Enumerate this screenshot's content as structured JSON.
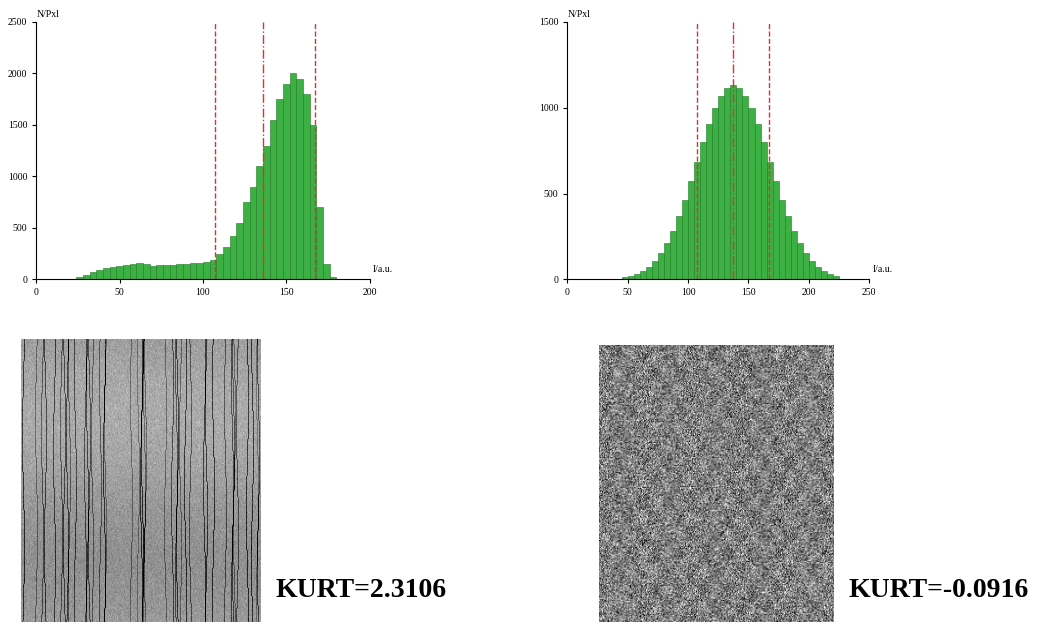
{
  "chart_data": [
    {
      "type": "histogram",
      "y_label": "N/Pxl",
      "x_label": "I/a.u.",
      "bins": [
        20,
        24,
        28,
        32,
        36,
        40,
        44,
        48,
        52,
        56,
        60,
        64,
        68,
        72,
        76,
        80,
        84,
        88,
        92,
        96,
        100,
        104,
        108,
        112,
        116,
        120,
        124,
        128,
        132,
        136,
        140,
        144,
        148,
        152,
        156,
        160,
        164,
        168,
        172,
        176,
        180
      ],
      "counts": [
        5,
        20,
        40,
        70,
        90,
        110,
        125,
        135,
        140,
        150,
        160,
        150,
        135,
        140,
        145,
        145,
        150,
        150,
        155,
        160,
        170,
        190,
        250,
        320,
        420,
        550,
        750,
        900,
        1100,
        1300,
        1550,
        1750,
        1900,
        2000,
        1950,
        1800,
        1500,
        700,
        150,
        20
      ],
      "color": "#3cb043",
      "xlim": [
        0,
        200
      ],
      "xticks": [
        0,
        50,
        100,
        150,
        200
      ],
      "ylim": [
        0,
        2500
      ],
      "yticks": [
        0,
        500,
        1000,
        1500,
        2000,
        2500
      ],
      "vlines": [
        {
          "value": 107,
          "line_style": "dashed",
          "color": "#e03030"
        },
        {
          "value": 136,
          "line_style": "dashdot",
          "color": "#e03030"
        },
        {
          "value": 167,
          "line_style": "dashed",
          "color": "#e03030"
        }
      ],
      "annotation": "KURT=2.3106"
    },
    {
      "type": "histogram",
      "y_label": "N/Pxl",
      "x_label": "I/a.u.",
      "bins": [
        45,
        50,
        55,
        60,
        65,
        70,
        75,
        80,
        85,
        90,
        95,
        100,
        105,
        110,
        115,
        120,
        125,
        130,
        135,
        140,
        145,
        150,
        155,
        160,
        165,
        170,
        175,
        180,
        185,
        190,
        195,
        200,
        205,
        210,
        215,
        220,
        225
      ],
      "counts": [
        12,
        20,
        32,
        50,
        75,
        108,
        153,
        210,
        281,
        367,
        465,
        572,
        686,
        799,
        905,
        997,
        1069,
        1114,
        1130,
        1114,
        1069,
        997,
        905,
        799,
        686,
        572,
        465,
        367,
        281,
        210,
        153,
        108,
        75,
        50,
        32,
        20
      ],
      "color": "#3cb043",
      "xlim": [
        0,
        250
      ],
      "xticks": [
        0,
        50,
        100,
        150,
        200,
        250
      ],
      "ylim": [
        0,
        1500
      ],
      "yticks": [
        0,
        500,
        1000,
        1500
      ],
      "vlines": [
        {
          "value": 107,
          "line_style": "dashed",
          "color": "#e03030"
        },
        {
          "value": 137,
          "line_style": "dashdot",
          "color": "#e03030"
        },
        {
          "value": 167,
          "line_style": "dashed",
          "color": "#e03030"
        }
      ],
      "annotation": "KURT=-0.0916"
    }
  ]
}
